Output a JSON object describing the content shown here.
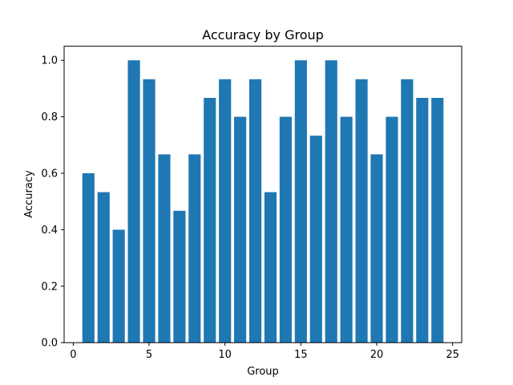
{
  "chart_data": {
    "type": "bar",
    "title": "Accuracy by Group",
    "xlabel": "Group",
    "ylabel": "Accuracy",
    "categories": [
      1,
      2,
      3,
      4,
      5,
      6,
      7,
      8,
      9,
      10,
      11,
      12,
      13,
      14,
      15,
      16,
      17,
      18,
      19,
      20,
      21,
      22,
      23,
      24
    ],
    "values": [
      0.6,
      0.533,
      0.4,
      1.0,
      0.933,
      0.667,
      0.467,
      0.667,
      0.867,
      0.933,
      0.8,
      0.933,
      0.533,
      0.8,
      1.0,
      0.733,
      1.0,
      0.8,
      0.933,
      0.667,
      0.8,
      0.933,
      0.867,
      0.867
    ],
    "xlim": [
      -0.6,
      25.6
    ],
    "ylim": [
      0,
      1.05
    ],
    "xticks": [
      0,
      5,
      10,
      15,
      20,
      25
    ],
    "xtick_labels": [
      "0",
      "5",
      "10",
      "15",
      "20",
      "25"
    ],
    "yticks": [
      0,
      0.2,
      0.4,
      0.6,
      0.8,
      1.0
    ],
    "ytick_labels": [
      "0.0",
      "0.2",
      "0.4",
      "0.6",
      "0.8",
      "1.0"
    ],
    "bar_color": "#1f77b4",
    "grid": false,
    "legend": "none"
  }
}
